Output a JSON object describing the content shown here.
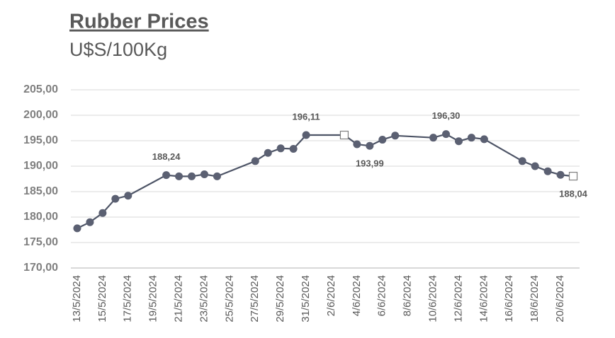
{
  "chart_data": {
    "type": "line",
    "title": "Rubber Prices",
    "subtitle": "U$S/100Kg",
    "x": [
      "13/5/2024",
      "14/5/2024",
      "15/5/2024",
      "16/5/2024",
      "17/5/2024",
      "20/5/2024",
      "21/5/2024",
      "22/5/2024",
      "23/5/2024",
      "24/5/2024",
      "27/5/2024",
      "28/5/2024",
      "29/5/2024",
      "30/5/2024",
      "31/5/2024",
      "3/6/2024",
      "4/6/2024",
      "5/6/2024",
      "6/6/2024",
      "7/6/2024",
      "10/6/2024",
      "11/6/2024",
      "12/6/2024",
      "13/6/2024",
      "14/6/2024",
      "17/6/2024",
      "18/6/2024",
      "19/6/2024",
      "20/6/2024",
      "21/6/2024"
    ],
    "series": [
      {
        "color": "#4d5466",
        "marker_color": "#5b6072",
        "values": [
          177.8,
          179.0,
          180.8,
          183.6,
          184.2,
          188.24,
          188.0,
          188.0,
          188.4,
          188.0,
          191.0,
          192.6,
          193.5,
          193.4,
          196.11,
          196.11,
          194.3,
          193.99,
          195.2,
          196.0,
          195.6,
          196.3,
          194.9,
          195.6,
          195.3,
          191.0,
          190.0,
          189.0,
          188.3,
          188.04
        ],
        "value_labels": [
          null,
          null,
          null,
          null,
          null,
          "188,24",
          null,
          null,
          null,
          null,
          null,
          null,
          null,
          null,
          "196,11",
          null,
          null,
          "193,99",
          null,
          null,
          null,
          "196,30",
          null,
          null,
          null,
          null,
          null,
          null,
          null,
          "188,04"
        ],
        "markers": [
          "circle",
          "circle",
          "circle",
          "circle",
          "circle",
          "circle",
          "circle",
          "circle",
          "circle",
          "circle",
          "circle",
          "circle",
          "circle",
          "circle",
          "circle",
          "square",
          "circle",
          "circle",
          "circle",
          "circle",
          "circle",
          "circle",
          "circle",
          "circle",
          "circle",
          "circle",
          "circle",
          "circle",
          "circle",
          "square"
        ]
      }
    ],
    "xlim": [
      "13/5/2024",
      "21/6/2024"
    ],
    "xticks": [
      "13/5/2024",
      "15/5/2024",
      "17/5/2024",
      "19/5/2024",
      "21/5/2024",
      "23/5/2024",
      "25/5/2024",
      "27/5/2024",
      "29/5/2024",
      "31/5/2024",
      "2/6/2024",
      "4/6/2024",
      "6/6/2024",
      "8/6/2024",
      "10/6/2024",
      "12/6/2024",
      "14/6/2024",
      "16/6/2024",
      "18/6/2024",
      "20/6/2024"
    ],
    "ylim": [
      170,
      205
    ],
    "yticks": [
      {
        "value": 170,
        "label": "170,00"
      },
      {
        "value": 175,
        "label": "175,00"
      },
      {
        "value": 180,
        "label": "180,00"
      },
      {
        "value": 185,
        "label": "185,00"
      },
      {
        "value": 190,
        "label": "190,00"
      },
      {
        "value": 195,
        "label": "195,00"
      },
      {
        "value": 200,
        "label": "200,00"
      },
      {
        "value": 205,
        "label": "205,00"
      }
    ],
    "grid": true
  }
}
